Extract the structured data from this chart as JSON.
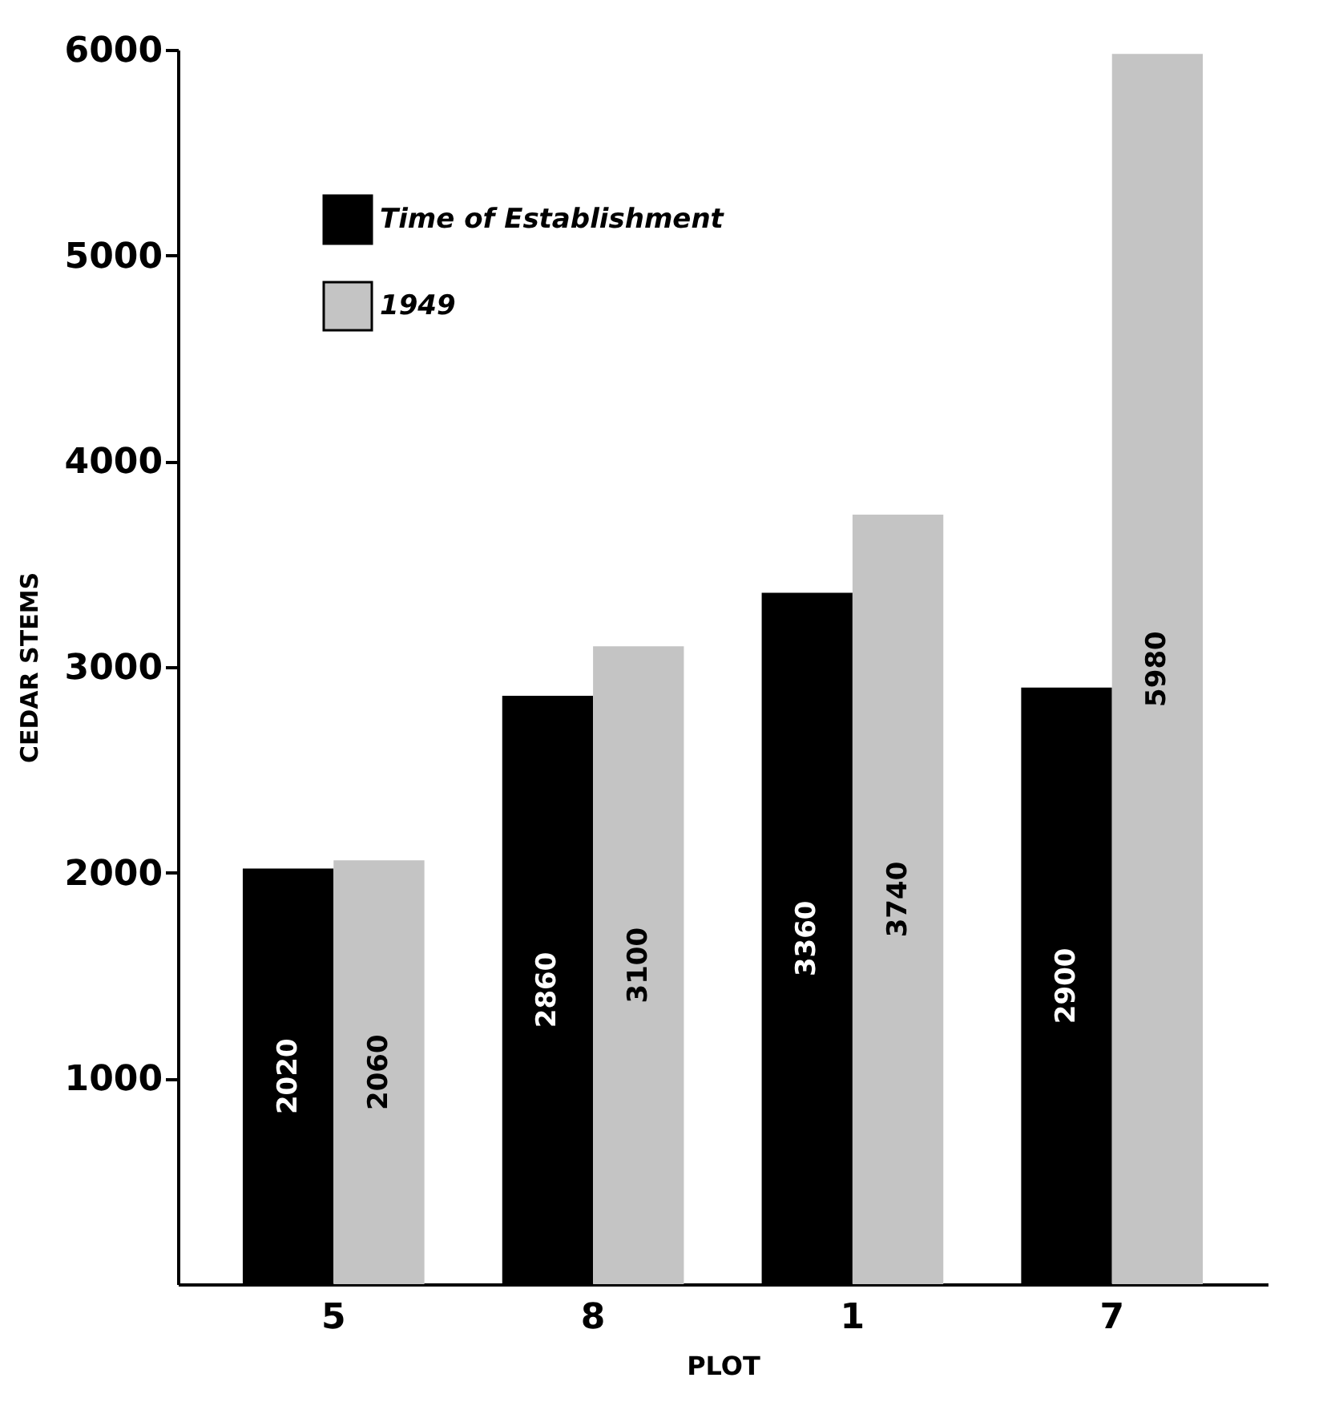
{
  "chart_data": {
    "type": "bar",
    "xlabel": "PLOT",
    "ylabel": "CEDAR STEMS",
    "categories": [
      "5",
      "8",
      "1",
      "7"
    ],
    "series": [
      {
        "name": "Time of Establishment",
        "color": "#000000",
        "values": [
          2020,
          2860,
          3360,
          2900
        ]
      },
      {
        "name": "1949",
        "color": "#c4c4c4",
        "values": [
          2060,
          3100,
          3740,
          5980
        ]
      }
    ],
    "ylim": [
      0,
      6000
    ],
    "yticks": [
      1000,
      2000,
      3000,
      4000,
      5000,
      6000
    ],
    "grid": false,
    "legend": "top left",
    "data_labels": true
  }
}
